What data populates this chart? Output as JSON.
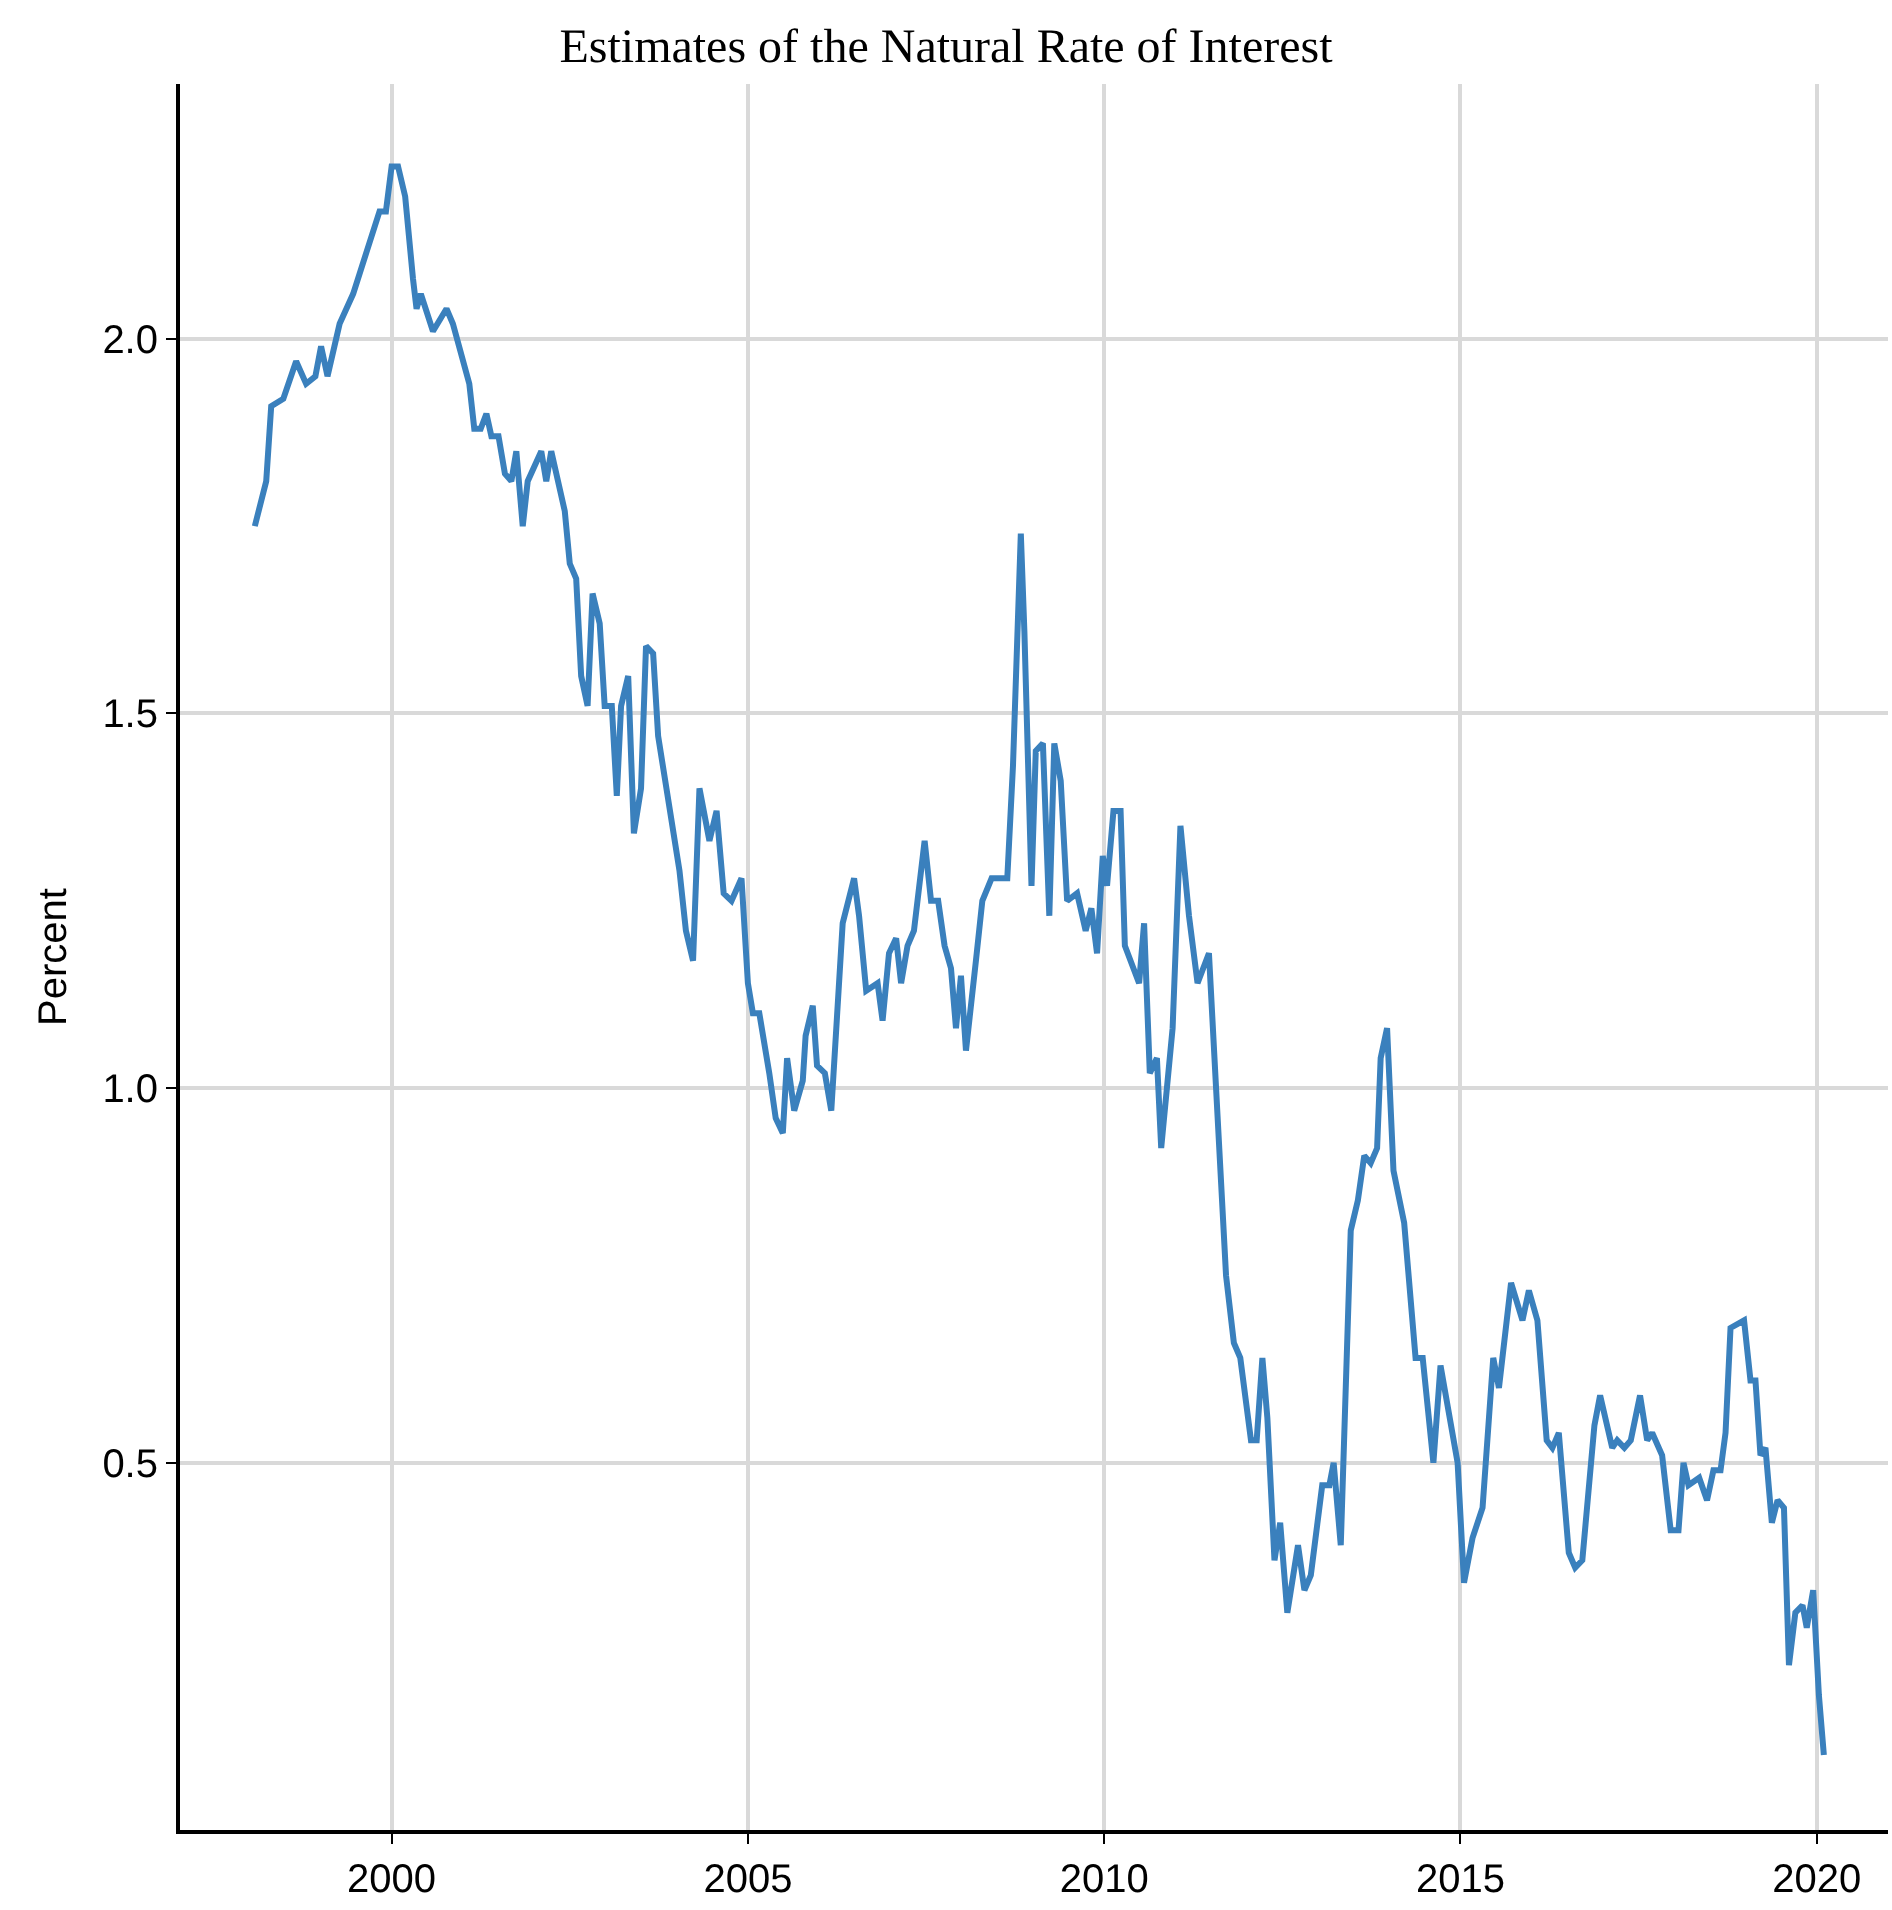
{
  "chart_data": {
    "type": "line",
    "title": "Estimates of the Natural Rate of Interest",
    "ylabel": "Percent",
    "x": [
      1998.08,
      1998.24,
      1998.31,
      1998.48,
      1998.66,
      1998.8,
      1998.93,
      1999.01,
      1999.1,
      1999.27,
      1999.46,
      1999.83,
      1999.92,
      2000.0,
      2000.09,
      2000.19,
      2000.3,
      2000.35,
      2000.41,
      2000.58,
      2000.77,
      2000.86,
      2001.09,
      2001.16,
      2001.25,
      2001.33,
      2001.4,
      2001.5,
      2001.59,
      2001.68,
      2001.75,
      2001.84,
      2001.91,
      2002.1,
      2002.17,
      2002.24,
      2002.43,
      2002.5,
      2002.59,
      2002.66,
      2002.75,
      2002.82,
      2002.92,
      2002.99,
      2003.09,
      2003.16,
      2003.22,
      2003.32,
      2003.4,
      2003.5,
      2003.57,
      2003.67,
      2003.74,
      2004.04,
      2004.13,
      2004.23,
      2004.32,
      2004.46,
      2004.56,
      2004.66,
      2004.77,
      2004.91,
      2005.0,
      2005.07,
      2005.16,
      2005.3,
      2005.39,
      2005.49,
      2005.55,
      2005.65,
      2005.77,
      2005.81,
      2005.91,
      2005.97,
      2006.08,
      2006.17,
      2006.33,
      2006.49,
      2006.56,
      2006.66,
      2006.82,
      2006.89,
      2006.98,
      2007.08,
      2007.15,
      2007.24,
      2007.33,
      2007.48,
      2007.57,
      2007.67,
      2007.76,
      2007.85,
      2007.92,
      2007.99,
      2008.06,
      2008.2,
      2008.29,
      2008.42,
      2008.53,
      2008.64,
      2008.72,
      2008.83,
      2008.88,
      2008.98,
      2009.04,
      2009.14,
      2009.23,
      2009.3,
      2009.39,
      2009.48,
      2009.62,
      2009.74,
      2009.82,
      2009.9,
      2009.98,
      2010.04,
      2010.13,
      2010.23,
      2010.29,
      2010.49,
      2010.56,
      2010.64,
      2010.74,
      2010.8,
      2010.96,
      2011.07,
      2011.19,
      2011.31,
      2011.47,
      2011.57,
      2011.71,
      2011.82,
      2011.91,
      2012.06,
      2012.14,
      2012.22,
      2012.29,
      2012.39,
      2012.47,
      2012.57,
      2012.72,
      2012.81,
      2012.9,
      2013.06,
      2013.16,
      2013.22,
      2013.32,
      2013.46,
      2013.56,
      2013.65,
      2013.74,
      2013.83,
      2013.88,
      2013.97,
      2014.06,
      2014.21,
      2014.37,
      2014.47,
      2014.62,
      2014.72,
      2014.96,
      2015.05,
      2015.17,
      2015.31,
      2015.46,
      2015.54,
      2015.71,
      2015.87,
      2015.96,
      2016.08,
      2016.21,
      2016.29,
      2016.38,
      2016.52,
      2016.61,
      2016.71,
      2016.88,
      2016.96,
      2017.13,
      2017.2,
      2017.3,
      2017.39,
      2017.52,
      2017.62,
      2017.69,
      2017.83,
      2017.95,
      2018.06,
      2018.13,
      2018.2,
      2018.35,
      2018.46,
      2018.55,
      2018.65,
      2018.72,
      2018.79,
      2018.98,
      2019.07,
      2019.14,
      2019.21,
      2019.28,
      2019.37,
      2019.45,
      2019.54,
      2019.61,
      2019.7,
      2019.8,
      2019.86,
      2019.95,
      2020.03,
      2020.1
    ],
    "values": [
      1.75,
      1.81,
      1.91,
      1.92,
      1.97,
      1.94,
      1.95,
      1.99,
      1.95,
      2.02,
      2.06,
      2.17,
      2.17,
      2.23,
      2.23,
      2.19,
      2.08,
      2.04,
      2.06,
      2.01,
      2.04,
      2.02,
      1.94,
      1.88,
      1.88,
      1.9,
      1.87,
      1.87,
      1.82,
      1.81,
      1.85,
      1.75,
      1.81,
      1.85,
      1.81,
      1.85,
      1.77,
      1.7,
      1.68,
      1.55,
      1.51,
      1.66,
      1.62,
      1.51,
      1.51,
      1.39,
      1.51,
      1.55,
      1.34,
      1.4,
      1.59,
      1.58,
      1.47,
      1.29,
      1.21,
      1.17,
      1.4,
      1.33,
      1.37,
      1.26,
      1.25,
      1.28,
      1.14,
      1.1,
      1.1,
      1.02,
      0.96,
      0.94,
      1.04,
      0.97,
      1.01,
      1.07,
      1.11,
      1.03,
      1.02,
      0.97,
      1.22,
      1.28,
      1.23,
      1.13,
      1.14,
      1.09,
      1.18,
      1.2,
      1.14,
      1.19,
      1.21,
      1.33,
      1.25,
      1.25,
      1.19,
      1.16,
      1.08,
      1.15,
      1.05,
      1.17,
      1.25,
      1.28,
      1.28,
      1.28,
      1.43,
      1.74,
      1.61,
      1.27,
      1.45,
      1.46,
      1.23,
      1.46,
      1.41,
      1.25,
      1.26,
      1.21,
      1.24,
      1.18,
      1.31,
      1.27,
      1.37,
      1.37,
      1.19,
      1.14,
      1.22,
      1.02,
      1.04,
      0.92,
      1.08,
      1.35,
      1.23,
      1.14,
      1.18,
      1.0,
      0.75,
      0.66,
      0.64,
      0.53,
      0.53,
      0.64,
      0.56,
      0.37,
      0.42,
      0.3,
      0.39,
      0.33,
      0.35,
      0.47,
      0.47,
      0.5,
      0.39,
      0.81,
      0.85,
      0.91,
      0.9,
      0.92,
      1.04,
      1.08,
      0.89,
      0.82,
      0.64,
      0.64,
      0.5,
      0.63,
      0.5,
      0.34,
      0.4,
      0.44,
      0.64,
      0.6,
      0.74,
      0.69,
      0.73,
      0.69,
      0.53,
      0.52,
      0.54,
      0.38,
      0.36,
      0.37,
      0.55,
      0.59,
      0.52,
      0.53,
      0.52,
      0.53,
      0.59,
      0.53,
      0.54,
      0.51,
      0.41,
      0.41,
      0.5,
      0.47,
      0.48,
      0.45,
      0.49,
      0.49,
      0.54,
      0.68,
      0.69,
      0.61,
      0.61,
      0.51,
      0.52,
      0.42,
      0.45,
      0.44,
      0.23,
      0.3,
      0.31,
      0.28,
      0.33,
      0.19,
      0.11
    ],
    "color": "#3a80bd",
    "line_style": "solid",
    "marker": "none",
    "grid": true,
    "xlim": [
      1997.03,
      2021.0
    ],
    "ylim": [
      0.01,
      2.34
    ],
    "xticks": [
      2000,
      2005,
      2010,
      2015,
      2020
    ],
    "yticks": [
      {
        "value": 0.5,
        "label": "0.5"
      },
      {
        "value": 1.0,
        "label": "1.0"
      },
      {
        "value": 1.5,
        "label": "1.5"
      },
      {
        "value": 2.0,
        "label": "2.0"
      }
    ]
  }
}
